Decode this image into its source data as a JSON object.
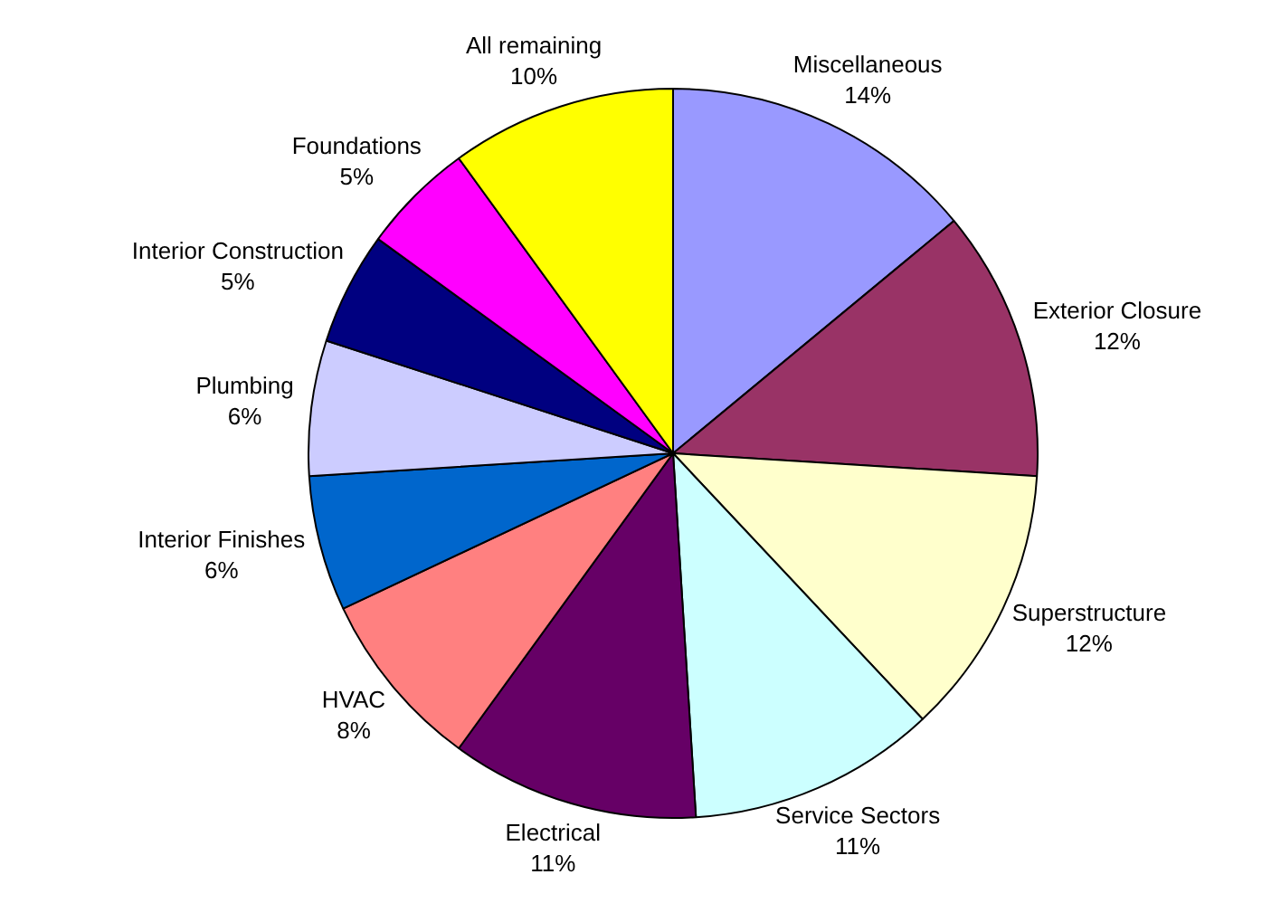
{
  "chart_data": {
    "type": "pie",
    "categories": [
      "Miscellaneous",
      "Exterior Closure",
      "Superstructure",
      "Service Sectors",
      "Electrical",
      "HVAC",
      "Interior Finishes",
      "Plumbing",
      "Interior Construction",
      "Foundations",
      "All remaining"
    ],
    "values": [
      14,
      12,
      12,
      11,
      11,
      8,
      6,
      6,
      5,
      5,
      10
    ],
    "value_labels": [
      "14%",
      "12%",
      "12%",
      "11%",
      "11%",
      "8%",
      "6%",
      "6%",
      "5%",
      "5%",
      "10%"
    ],
    "colors": [
      "#9999ff",
      "#993366",
      "#ffffcc",
      "#ccffff",
      "#660066",
      "#ff8080",
      "#0066cc",
      "#ccccff",
      "#000080",
      "#ff00ff",
      "#ffff00"
    ],
    "legend": false
  }
}
